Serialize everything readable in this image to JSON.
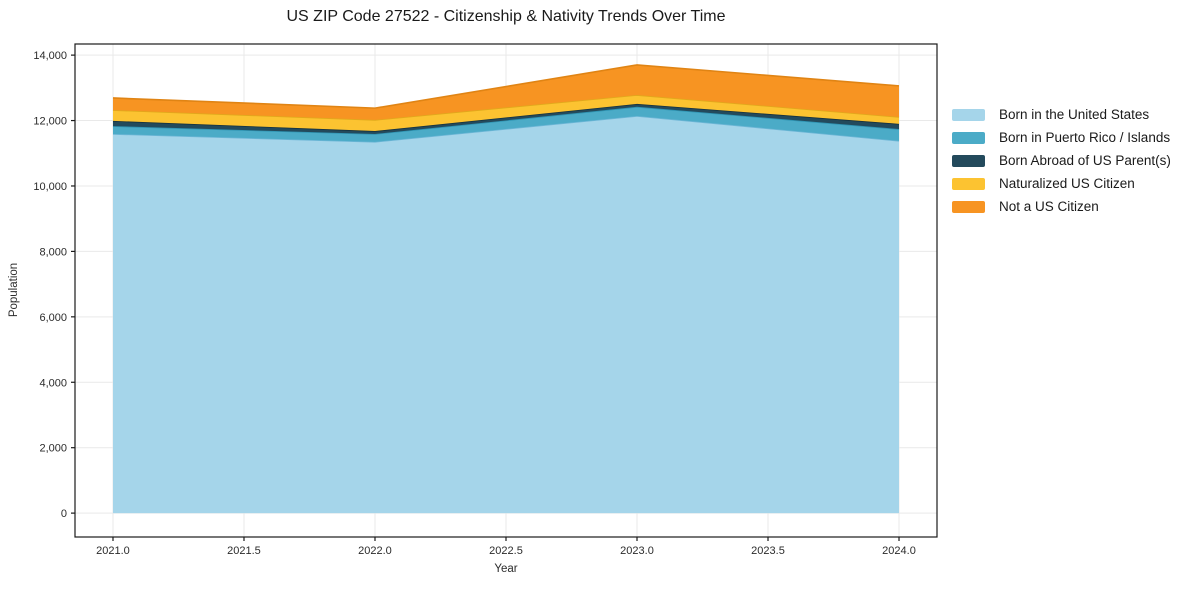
{
  "title": "US ZIP Code 27522 - Citizenship & Nativity Trends Over Time",
  "chart_data": {
    "type": "area",
    "stacked": true,
    "title": "US ZIP Code 27522 - Citizenship & Nativity Trends Over Time",
    "xlabel": "Year",
    "ylabel": "Population",
    "x": [
      2021,
      2022,
      2023,
      2024
    ],
    "series": [
      {
        "name": "Born in the United States",
        "color": "#a5d5ea",
        "edge": "#6db6d6",
        "values": [
          11590,
          11350,
          12140,
          11380
        ]
      },
      {
        "name": "Born in Puerto Rico / Islands",
        "color": "#4babc7",
        "edge": "#2e93b2",
        "values": [
          240,
          240,
          280,
          360
        ]
      },
      {
        "name": "Born Abroad of US Parent(s)",
        "color": "#234a5c",
        "edge": "#16323f",
        "values": [
          160,
          90,
          90,
          160
        ]
      },
      {
        "name": "Naturalized US Citizen",
        "color": "#fcc331",
        "edge": "#e0a91b",
        "values": [
          330,
          340,
          270,
          210
        ]
      },
      {
        "name": "Not a US Citizen",
        "color": "#f79422",
        "edge": "#e08414",
        "values": [
          370,
          360,
          920,
          950
        ]
      }
    ],
    "totals": [
      12690,
      12380,
      13700,
      13060
    ],
    "xticks": [
      2021.0,
      2021.5,
      2022.0,
      2022.5,
      2023.0,
      2023.5,
      2024.0
    ],
    "xtick_labels": [
      "2021.0",
      "2021.5",
      "2022.0",
      "2022.5",
      "2023.0",
      "2023.5",
      "2024.0"
    ],
    "yticks": [
      0,
      2000,
      4000,
      6000,
      8000,
      10000,
      12000,
      14000
    ],
    "ytick_labels": [
      "0",
      "2,000",
      "4,000",
      "6,000",
      "8,000",
      "10,000",
      "12,000",
      "14,000"
    ],
    "xlim": [
      2020.855,
      2024.145
    ],
    "ylim": [
      -730,
      14340
    ],
    "grid": true,
    "grid_color": "#e9e9e9",
    "spine_color": "#1a1a1a",
    "tick_text_color": "#2b2b2b",
    "legend_position": "right"
  }
}
